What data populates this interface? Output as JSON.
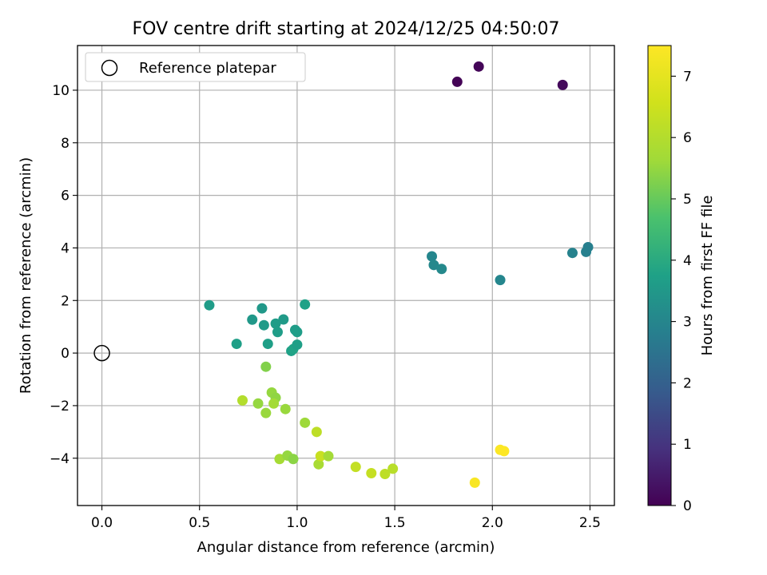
{
  "chart_data": {
    "type": "scatter",
    "title": "FOV centre drift starting at 2024/12/25 04:50:07",
    "xlabel": "Angular distance from reference (arcmin)",
    "ylabel": "Rotation from reference (arcmin)",
    "xlim": [
      -0.125,
      2.625
    ],
    "ylim": [
      -5.8,
      11.7
    ],
    "x_ticks": [
      0.0,
      0.5,
      1.0,
      1.5,
      2.0,
      2.5
    ],
    "x_tick_labels": [
      "0.0",
      "0.5",
      "1.0",
      "1.5",
      "2.0",
      "2.5"
    ],
    "y_ticks": [
      -4,
      -2,
      0,
      2,
      4,
      6,
      8,
      10
    ],
    "y_tick_labels": [
      "−4",
      "−2",
      "0",
      "2",
      "4",
      "6",
      "8",
      "10"
    ],
    "grid": true,
    "legend": {
      "position": "top-left",
      "entries": [
        {
          "label": "Reference platepar",
          "marker": "open-circle"
        }
      ]
    },
    "reference_point": {
      "x": 0.0,
      "y": 0.0
    },
    "colorbar": {
      "label": "Hours from first FF file",
      "colormap": "viridis",
      "range": [
        0,
        7.5
      ],
      "ticks": [
        0,
        1,
        2,
        3,
        4,
        5,
        6,
        7
      ],
      "tick_labels": [
        "0",
        "1",
        "2",
        "3",
        "4",
        "5",
        "6",
        "7"
      ]
    },
    "points": [
      {
        "x": 1.82,
        "y": 10.32,
        "h": 0.05
      },
      {
        "x": 1.93,
        "y": 10.9,
        "h": 0.1
      },
      {
        "x": 2.36,
        "y": 10.2,
        "h": 0.15
      },
      {
        "x": 2.49,
        "y": 4.03,
        "h": 2.8
      },
      {
        "x": 2.48,
        "y": 3.85,
        "h": 2.85
      },
      {
        "x": 2.41,
        "y": 3.81,
        "h": 2.9
      },
      {
        "x": 1.69,
        "y": 3.68,
        "h": 3.0
      },
      {
        "x": 1.7,
        "y": 3.35,
        "h": 3.05
      },
      {
        "x": 1.74,
        "y": 3.2,
        "h": 3.1
      },
      {
        "x": 2.04,
        "y": 2.78,
        "h": 3.0
      },
      {
        "x": 0.55,
        "y": 1.82,
        "h": 3.6
      },
      {
        "x": 0.69,
        "y": 0.35,
        "h": 3.7
      },
      {
        "x": 0.77,
        "y": 1.27,
        "h": 3.5
      },
      {
        "x": 0.82,
        "y": 1.7,
        "h": 3.5
      },
      {
        "x": 0.83,
        "y": 1.06,
        "h": 3.55
      },
      {
        "x": 0.85,
        "y": 0.35,
        "h": 3.7
      },
      {
        "x": 0.89,
        "y": 1.12,
        "h": 3.6
      },
      {
        "x": 0.9,
        "y": 0.8,
        "h": 3.65
      },
      {
        "x": 0.93,
        "y": 1.28,
        "h": 3.55
      },
      {
        "x": 0.97,
        "y": 0.08,
        "h": 3.75
      },
      {
        "x": 0.98,
        "y": 0.15,
        "h": 3.8
      },
      {
        "x": 0.99,
        "y": 0.88,
        "h": 3.6
      },
      {
        "x": 1.0,
        "y": 0.8,
        "h": 3.65
      },
      {
        "x": 1.0,
        "y": 0.32,
        "h": 3.7
      },
      {
        "x": 1.04,
        "y": 1.85,
        "h": 3.75
      },
      {
        "x": 0.84,
        "y": -0.52,
        "h": 5.3
      },
      {
        "x": 0.72,
        "y": -1.8,
        "h": 6.0
      },
      {
        "x": 0.8,
        "y": -1.92,
        "h": 5.5
      },
      {
        "x": 0.84,
        "y": -2.28,
        "h": 5.55
      },
      {
        "x": 0.87,
        "y": -1.5,
        "h": 5.5
      },
      {
        "x": 0.89,
        "y": -1.7,
        "h": 5.45
      },
      {
        "x": 0.88,
        "y": -1.92,
        "h": 5.7
      },
      {
        "x": 0.94,
        "y": -2.13,
        "h": 5.55
      },
      {
        "x": 1.04,
        "y": -2.65,
        "h": 5.6
      },
      {
        "x": 1.1,
        "y": -3.0,
        "h": 6.2
      },
      {
        "x": 0.91,
        "y": -4.03,
        "h": 5.75
      },
      {
        "x": 0.95,
        "y": -3.9,
        "h": 5.5
      },
      {
        "x": 0.98,
        "y": -4.03,
        "h": 5.4
      },
      {
        "x": 1.11,
        "y": -4.23,
        "h": 5.8
      },
      {
        "x": 1.12,
        "y": -3.92,
        "h": 6.4
      },
      {
        "x": 1.16,
        "y": -3.92,
        "h": 5.7
      },
      {
        "x": 1.3,
        "y": -4.33,
        "h": 6.3
      },
      {
        "x": 1.38,
        "y": -4.57,
        "h": 6.35
      },
      {
        "x": 1.45,
        "y": -4.6,
        "h": 6.2
      },
      {
        "x": 1.49,
        "y": -4.4,
        "h": 6.1
      },
      {
        "x": 1.91,
        "y": -4.93,
        "h": 7.4
      },
      {
        "x": 2.04,
        "y": -3.68,
        "h": 7.45
      },
      {
        "x": 2.06,
        "y": -3.73,
        "h": 7.5
      }
    ]
  }
}
